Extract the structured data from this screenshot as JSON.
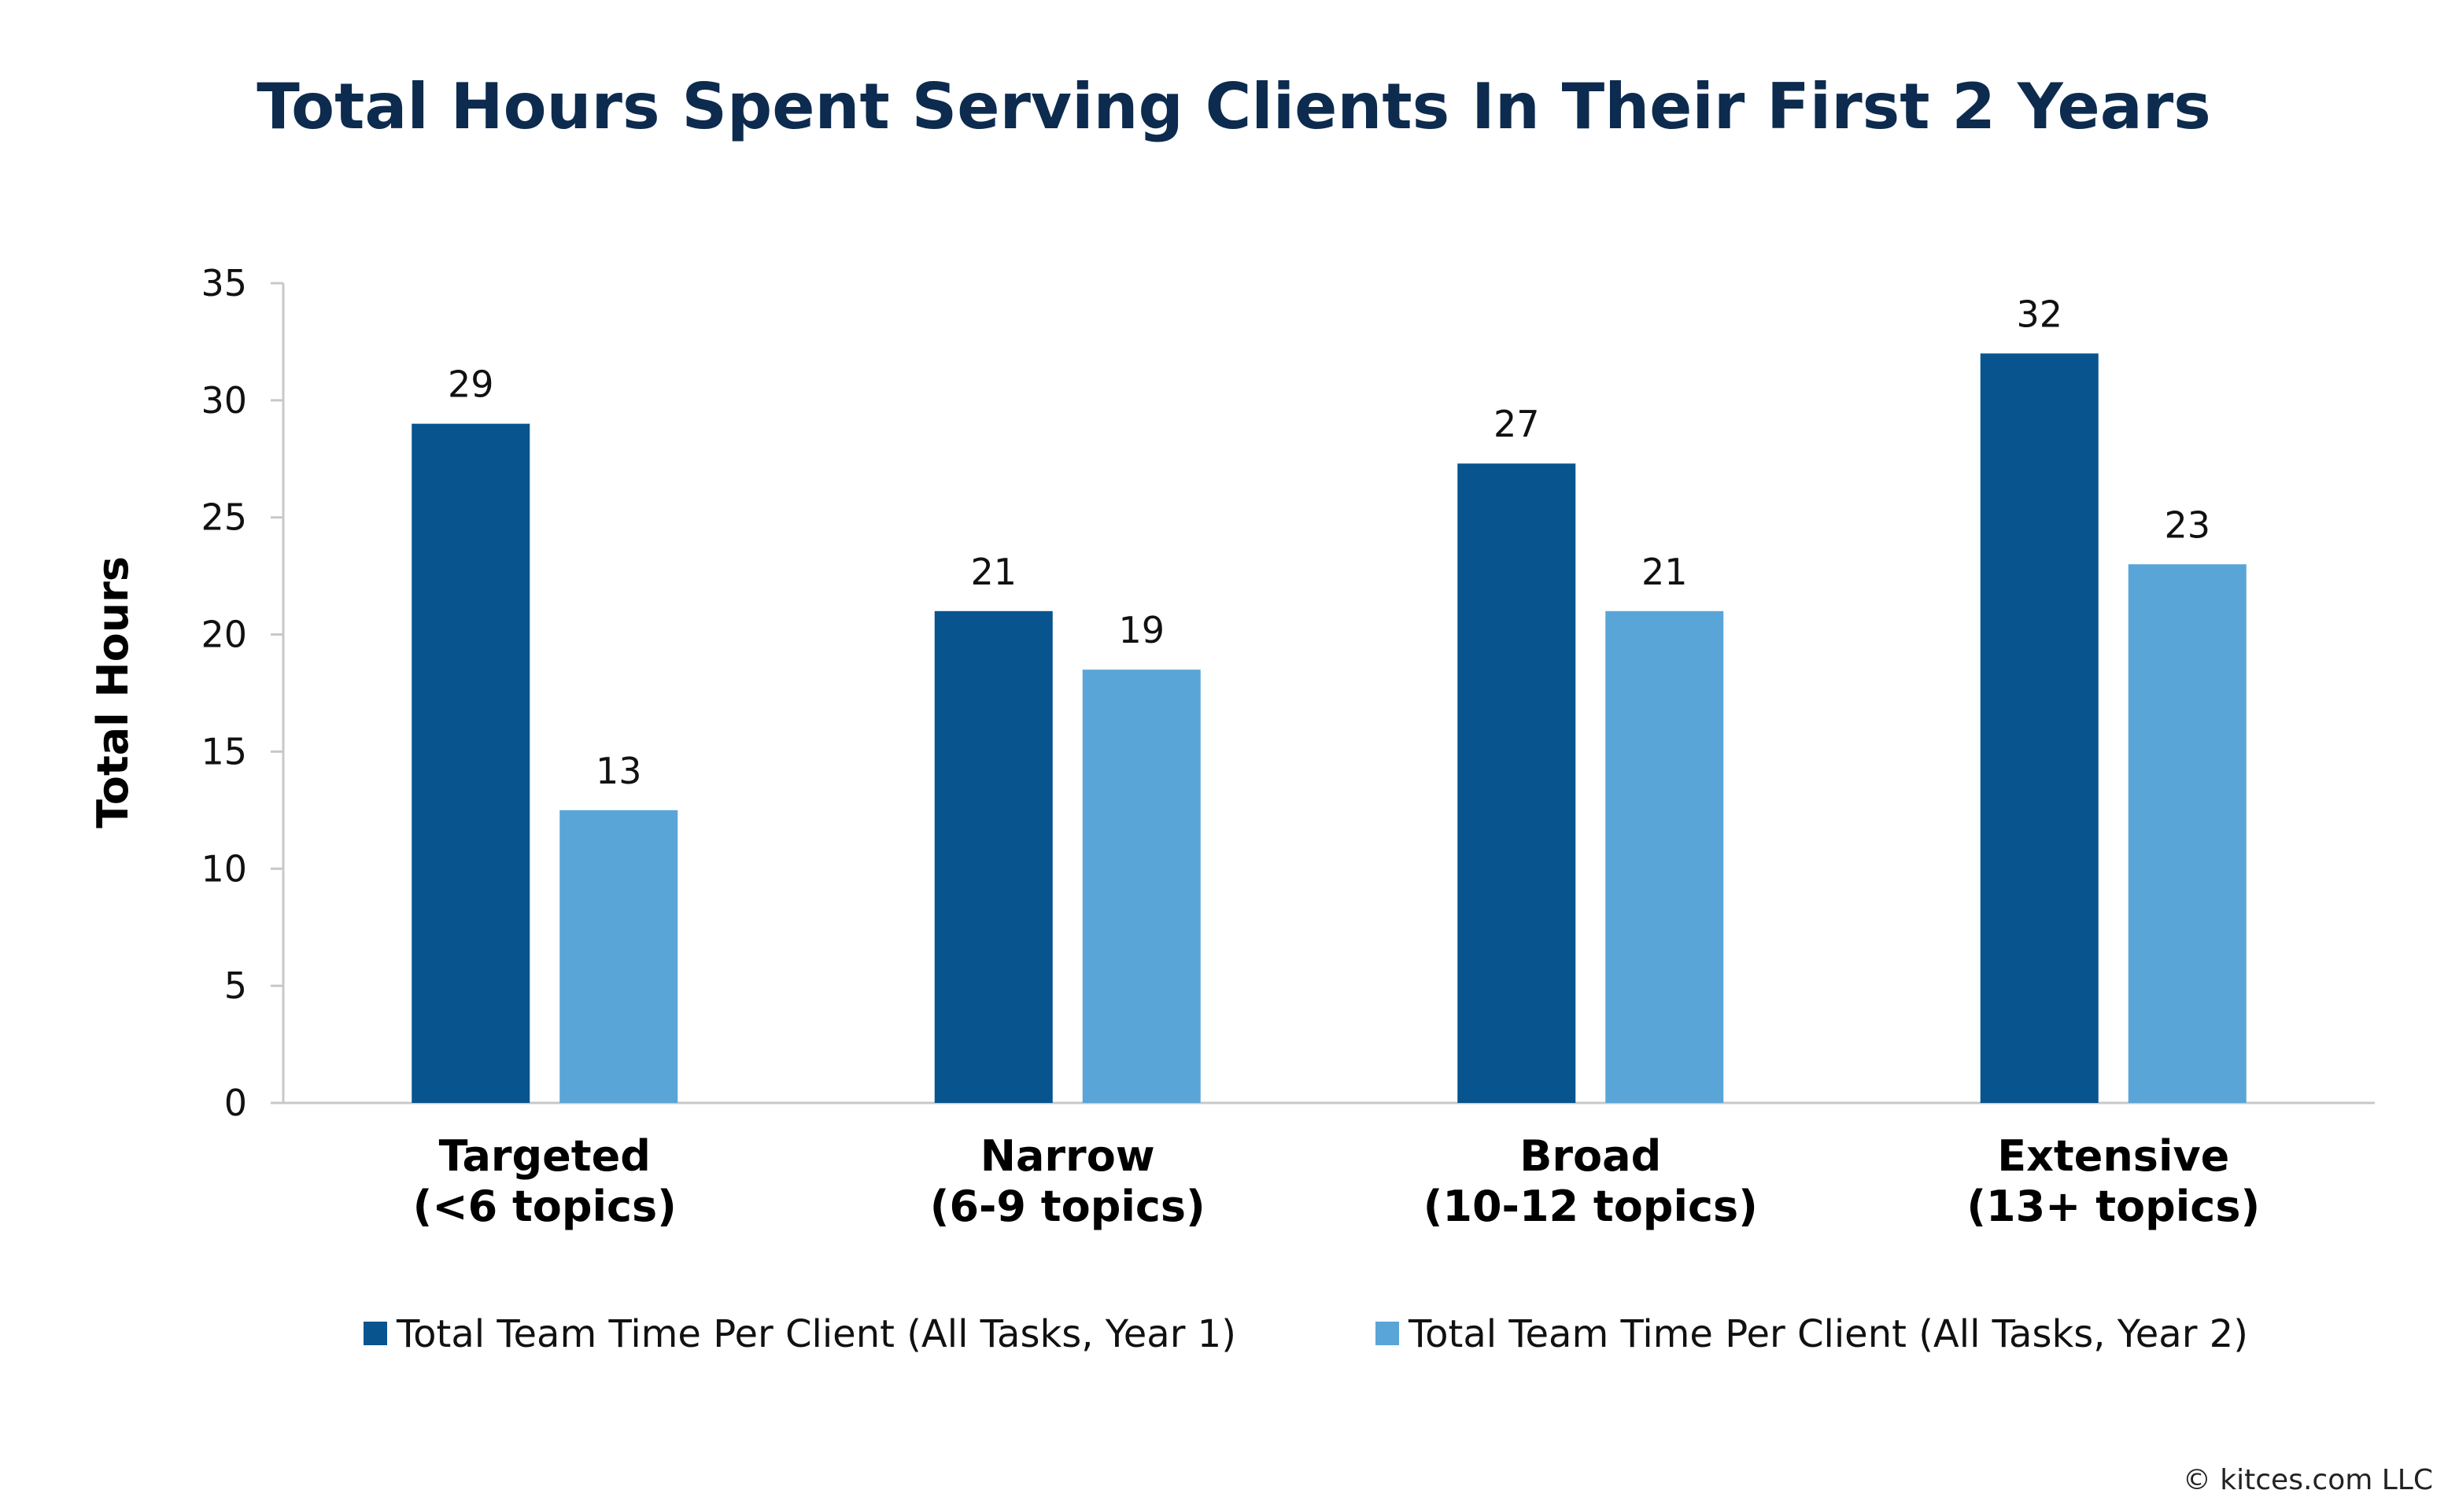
{
  "title": "Total Hours Spent Serving Clients In Their First 2 Years",
  "footer": "© kitces.com LLC",
  "colors": {
    "series1": "#07548f",
    "series2": "#5aa5d7",
    "title": "#0c2b4e"
  },
  "chart_data": {
    "type": "bar",
    "title": "Total Hours Spent Serving Clients In Their First 2 Years",
    "xlabel": "",
    "ylabel": "Total Hours",
    "ylim": [
      0,
      35
    ],
    "yticks": [
      0,
      5,
      10,
      15,
      20,
      25,
      30,
      35
    ],
    "grid": false,
    "legend_position": "bottom",
    "categories": [
      [
        "Targeted",
        "(<6 topics)"
      ],
      [
        "Narrow",
        "(6-9 topics)"
      ],
      [
        "Broad",
        "(10-12 topics)"
      ],
      [
        "Extensive",
        "(13+ topics)"
      ]
    ],
    "series": [
      {
        "name": "Total Team Time Per Client (All Tasks, Year 1)",
        "values": [
          29,
          21,
          27.3,
          32
        ],
        "data_labels": [
          "29",
          "21",
          "27",
          "32"
        ],
        "color": "#07548f"
      },
      {
        "name": "Total Team Time Per Client (All Tasks, Year 2)",
        "values": [
          12.5,
          18.5,
          21,
          23
        ],
        "data_labels": [
          "13",
          "19",
          "21",
          "23"
        ],
        "color": "#5aa5d7"
      }
    ]
  }
}
